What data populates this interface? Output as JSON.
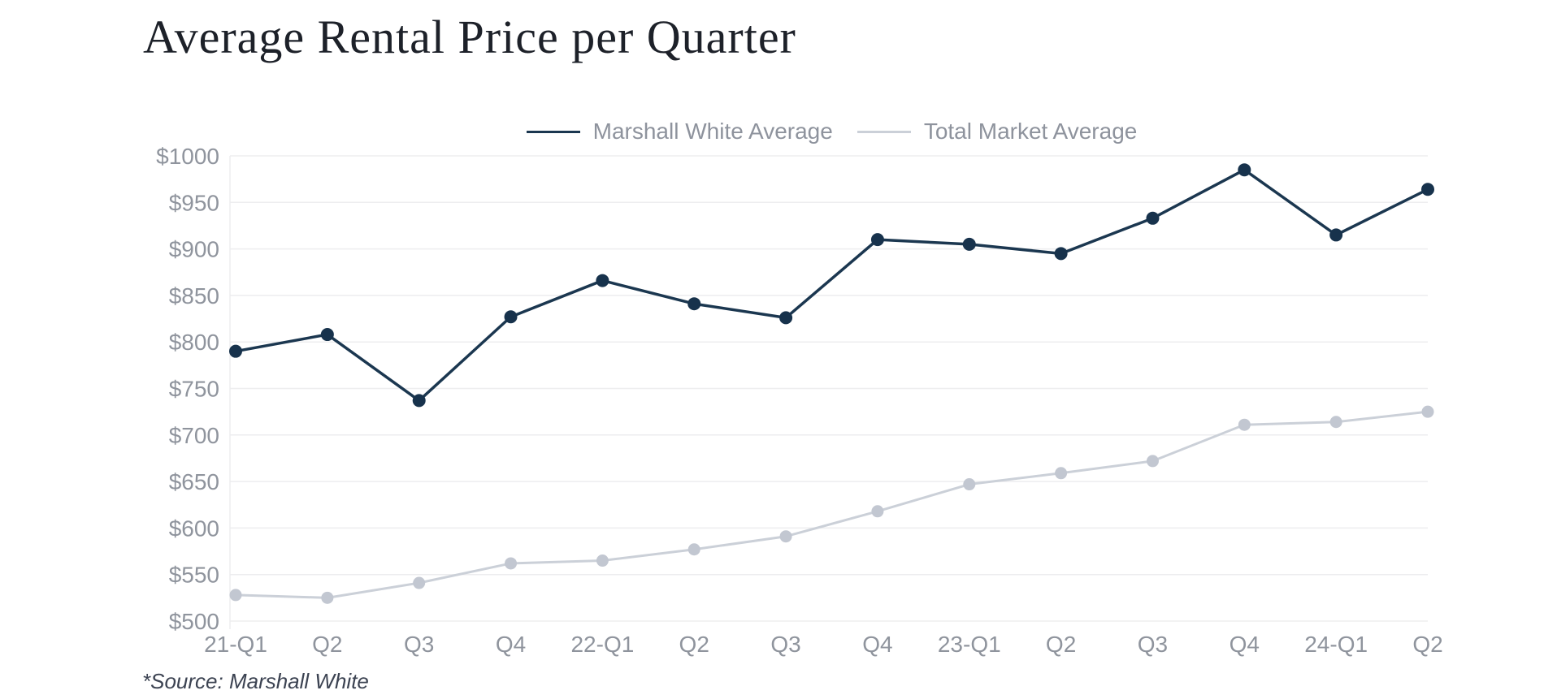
{
  "page": {
    "title": "Average Rental Price per Quarter",
    "source_note": "*Source: Marshall White"
  },
  "chart_data": {
    "type": "line",
    "title": "Average Rental Price per Quarter",
    "categories": [
      "21-Q1",
      "Q2",
      "Q3",
      "Q4",
      "22-Q1",
      "Q2",
      "Q3",
      "Q4",
      "23-Q1",
      "Q2",
      "Q3",
      "Q4",
      "24-Q1",
      "Q2"
    ],
    "series": [
      {
        "name": "Marshall White Average",
        "color": "#1b3750",
        "values": [
          790,
          808,
          737,
          827,
          866,
          841,
          826,
          910,
          905,
          895,
          933,
          985,
          915,
          964
        ]
      },
      {
        "name": "Total Market Average",
        "color": "#cbd0d8",
        "values": [
          528,
          525,
          541,
          562,
          565,
          577,
          591,
          618,
          647,
          659,
          672,
          711,
          714,
          725
        ]
      }
    ],
    "xlabel": "",
    "ylabel": "",
    "ylim": [
      500,
      1000
    ],
    "y_tick_step": 50,
    "y_ticks": [
      "$1000",
      "$950",
      "$900",
      "$850",
      "$800",
      "$750",
      "$700",
      "$650",
      "$600",
      "$550",
      "$500"
    ],
    "grid": "horizontal",
    "legend_position": "top-center",
    "colors": {
      "axis_text": "#8f949d",
      "gridline": "#ededef",
      "marshall_white_dot": "#17324c",
      "total_market_dot": "#c2c7d1"
    }
  }
}
